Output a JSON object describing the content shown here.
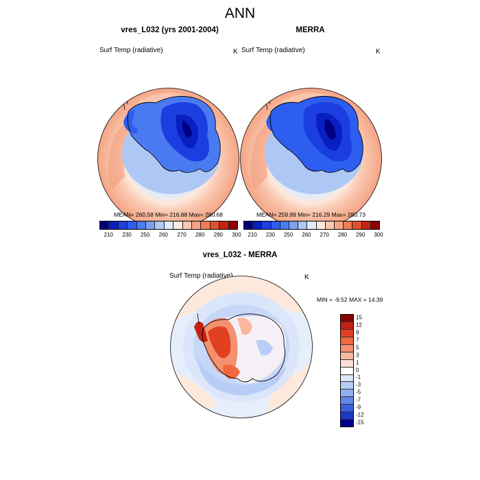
{
  "title": "ANN",
  "panels": [
    {
      "title": "vres_L032 (yrs 2001-2004)",
      "variable": "Surf Temp (radiative)",
      "units": "K",
      "stats": "MEAN= 260.58  Min= 216.88  Max= 280.68"
    },
    {
      "title": "MERRA",
      "variable": "Surf Temp (radiative)",
      "units": "K",
      "stats": "MEAN= 259.99  Min= 216.29  Max= 280.73"
    }
  ],
  "diff": {
    "title": "vres_L032 - MERRA",
    "variable": "Surf Temp (radiative)",
    "units": "K",
    "stats": "MIN =  -9.52 MAX =  14.39"
  },
  "colorbar_abs": {
    "colors": [
      "#000080",
      "#0a1fc0",
      "#1a3ee0",
      "#2d5ef0",
      "#4a7af0",
      "#7ca0f0",
      "#aec8f5",
      "#e0ecfa",
      "#fde8dc",
      "#f9c8b0",
      "#f4a484",
      "#ee7c58",
      "#e2502e",
      "#c42410",
      "#8f0000"
    ],
    "labels": [
      "210",
      "230",
      "250",
      "260",
      "270",
      "280",
      "290",
      "300"
    ]
  },
  "colorbar_diff": {
    "colors": [
      "#8b0000",
      "#c42010",
      "#e04020",
      "#f06840",
      "#f59070",
      "#fab8a0",
      "#fde0d4",
      "#ffffff",
      "#dbe6fa",
      "#b8cdf5",
      "#90b0f0",
      "#6088e8",
      "#3a60e0",
      "#1a38c8",
      "#000090"
    ],
    "labels": [
      "15",
      "12",
      "9",
      "7",
      "5",
      "3",
      "1",
      "0",
      "-1",
      "-3",
      "-5",
      "-7",
      "-9",
      "-12",
      "-15"
    ]
  }
}
